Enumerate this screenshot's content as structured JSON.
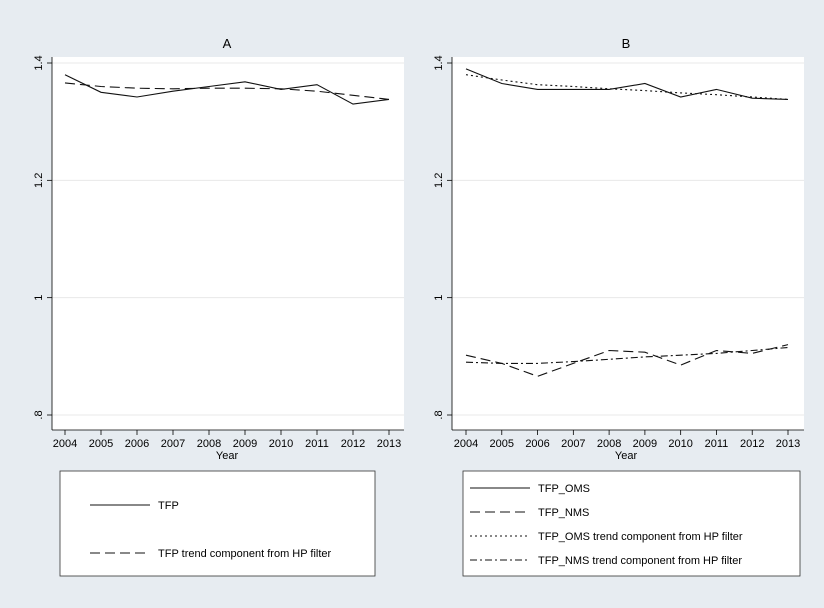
{
  "chart_data": [
    {
      "type": "line",
      "title": "A",
      "xlabel": "Year",
      "ylabel": "",
      "x": [
        2004,
        2005,
        2006,
        2007,
        2008,
        2009,
        2010,
        2011,
        2012,
        2013
      ],
      "ylim": [
        0.8,
        1.4
      ],
      "yticks": [
        0.8,
        1.0,
        1.2,
        1.4
      ],
      "ytick_labels": [
        ".8",
        "1",
        "1.2",
        "1.4"
      ],
      "grid": true,
      "legend_position": "bottom",
      "series": [
        {
          "name": "TFP",
          "dash": "solid",
          "values": [
            1.38,
            1.35,
            1.342,
            1.352,
            1.36,
            1.368,
            1.355,
            1.363,
            1.33,
            1.338
          ]
        },
        {
          "name": "TFP  trend component from HP filter",
          "dash": "dashed",
          "values": [
            1.366,
            1.36,
            1.357,
            1.356,
            1.357,
            1.357,
            1.356,
            1.352,
            1.345,
            1.338
          ]
        }
      ]
    },
    {
      "type": "line",
      "title": "B",
      "xlabel": "Year",
      "ylabel": "",
      "x": [
        2004,
        2005,
        2006,
        2007,
        2008,
        2009,
        2010,
        2011,
        2012,
        2013
      ],
      "ylim": [
        0.8,
        1.4
      ],
      "yticks": [
        0.8,
        1.0,
        1.2,
        1.4
      ],
      "ytick_labels": [
        ".8",
        "1",
        "1.2",
        "1.4"
      ],
      "grid": true,
      "legend_position": "bottom",
      "series": [
        {
          "name": "TFP_OMS",
          "dash": "solid",
          "values": [
            1.39,
            1.365,
            1.355,
            1.355,
            1.355,
            1.365,
            1.342,
            1.355,
            1.34,
            1.338
          ]
        },
        {
          "name": "TFP_NMS",
          "dash": "dashed",
          "values": [
            0.902,
            0.888,
            0.866,
            0.888,
            0.91,
            0.907,
            0.885,
            0.91,
            0.905,
            0.92
          ]
        },
        {
          "name": "TFP_OMS trend component from HP filter",
          "dash": "dotted",
          "values": [
            1.38,
            1.371,
            1.363,
            1.36,
            1.356,
            1.353,
            1.349,
            1.346,
            1.342,
            1.338
          ]
        },
        {
          "name": "TFP_NMS trend component from HP filter",
          "dash": "dashdot",
          "values": [
            0.89,
            0.888,
            0.888,
            0.891,
            0.895,
            0.899,
            0.902,
            0.905,
            0.91,
            0.915
          ]
        }
      ]
    }
  ]
}
